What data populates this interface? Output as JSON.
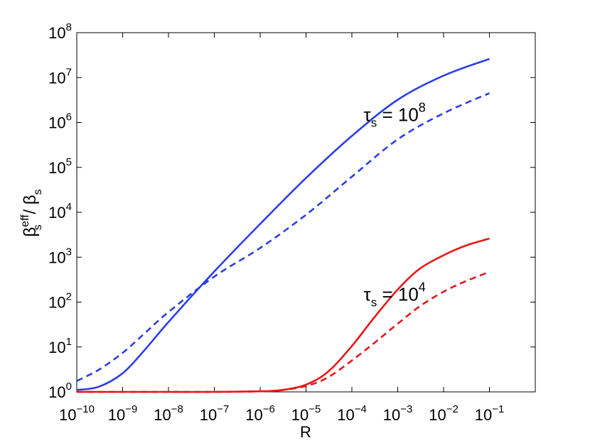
{
  "chart_data": {
    "type": "line",
    "xscale": "log",
    "yscale": "log",
    "xlim": [
      1e-10,
      1
    ],
    "ylim": [
      1,
      100000000.0
    ],
    "xlabel": "R",
    "ylabel": {
      "main": "β",
      "sup": "eff",
      "sub": "s",
      "sep": " / ",
      "main2": "β",
      "sub2": "s"
    },
    "x_ticks": [
      {
        "value": 1e-10,
        "base": "10",
        "exp": "−10"
      },
      {
        "value": 1e-09,
        "base": "10",
        "exp": "−9"
      },
      {
        "value": 1e-08,
        "base": "10",
        "exp": "−8"
      },
      {
        "value": 1e-07,
        "base": "10",
        "exp": "−7"
      },
      {
        "value": 1e-06,
        "base": "10",
        "exp": "−6"
      },
      {
        "value": 1e-05,
        "base": "10",
        "exp": "−5"
      },
      {
        "value": 0.0001,
        "base": "10",
        "exp": "−4"
      },
      {
        "value": 0.001,
        "base": "10",
        "exp": "−3"
      },
      {
        "value": 0.01,
        "base": "10",
        "exp": "−2"
      },
      {
        "value": 0.1,
        "base": "10",
        "exp": "−1"
      }
    ],
    "y_ticks": [
      {
        "value": 1,
        "base": "10",
        "exp": "0"
      },
      {
        "value": 10,
        "base": "10",
        "exp": "1"
      },
      {
        "value": 100,
        "base": "10",
        "exp": "2"
      },
      {
        "value": 1000,
        "base": "10",
        "exp": "3"
      },
      {
        "value": 10000,
        "base": "10",
        "exp": "4"
      },
      {
        "value": 100000,
        "base": "10",
        "exp": "5"
      },
      {
        "value": 1000000,
        "base": "10",
        "exp": "6"
      },
      {
        "value": 10000000,
        "base": "10",
        "exp": "7"
      },
      {
        "value": 100000000,
        "base": "10",
        "exp": "8"
      }
    ],
    "grid": false,
    "series": [
      {
        "color": "#2b3fe8",
        "dash": "solid",
        "x": [
          1e-10,
          3e-10,
          1e-09,
          3e-09,
          1e-08,
          1e-07,
          1e-06,
          1e-05,
          0.0001,
          0.001,
          0.01,
          0.1
        ],
        "y": [
          1.1,
          1.3,
          2.6,
          8.5,
          36,
          480,
          5500,
          58000,
          500000,
          3200000,
          11000000,
          26000000
        ]
      },
      {
        "color": "#2b3fe8",
        "dash": "dashed",
        "x": [
          1e-10,
          3e-10,
          1e-09,
          3e-09,
          1e-08,
          1e-07,
          1e-06,
          1e-05,
          0.0001,
          0.001,
          0.01,
          0.1
        ],
        "y": [
          1.75,
          3.1,
          7.4,
          20,
          60,
          370,
          1600,
          8800,
          62000,
          420000,
          1600000,
          4500000
        ]
      },
      {
        "color": "#e61717",
        "dash": "solid",
        "x": [
          1e-10,
          1e-08,
          1e-07,
          1e-06,
          3e-06,
          1e-05,
          3e-05,
          0.0001,
          0.0003,
          0.001,
          0.003,
          0.01,
          0.03,
          0.1
        ],
        "y": [
          1,
          1,
          1,
          1.03,
          1.1,
          1.45,
          2.8,
          10.5,
          44,
          190,
          550,
          1100,
          1800,
          2600
        ]
      },
      {
        "color": "#e61717",
        "dash": "dashed",
        "x": [
          1e-10,
          1e-08,
          1e-07,
          1e-06,
          3e-06,
          1e-05,
          3e-05,
          0.0001,
          0.0003,
          0.001,
          0.003,
          0.01,
          0.03,
          0.1
        ],
        "y": [
          1,
          1,
          1,
          1.03,
          1.1,
          1.35,
          2.1,
          5,
          12,
          33,
          80,
          170,
          290,
          470
        ]
      }
    ],
    "annotations": [
      {
        "main": "τ",
        "sub": "s",
        "rel": " = 10",
        "exp": "8",
        "x": 0.00018,
        "y": 1000000,
        "color": "#000000"
      },
      {
        "main": "τ",
        "sub": "s",
        "rel": " = 10",
        "exp": "4",
        "x": 0.00018,
        "y": 100,
        "color": "#000000"
      }
    ]
  }
}
